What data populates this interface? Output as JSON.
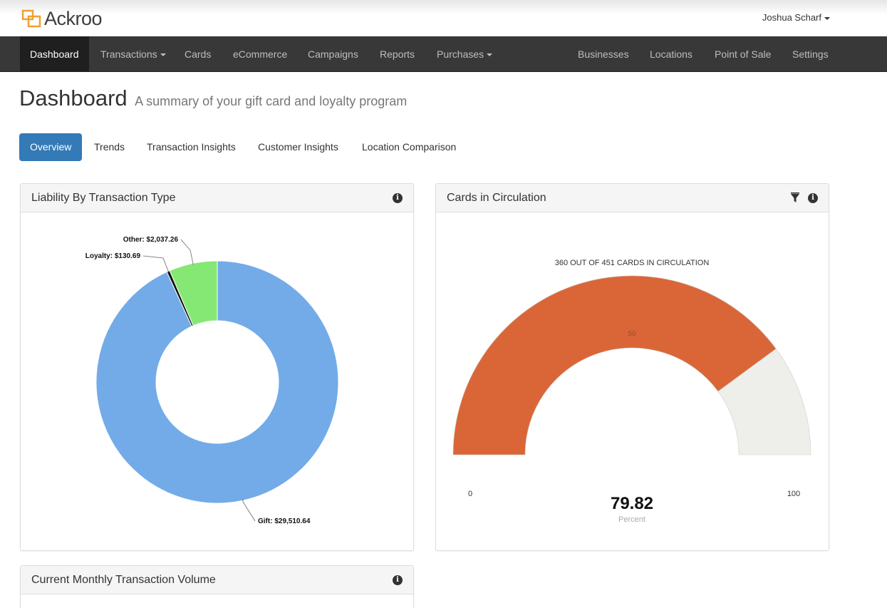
{
  "brand": {
    "name": "Ackroo"
  },
  "user": {
    "name": "Joshua Scharf"
  },
  "nav": {
    "left": [
      {
        "label": "Dashboard",
        "active": true,
        "caret": false
      },
      {
        "label": "Transactions",
        "caret": true
      },
      {
        "label": "Cards",
        "caret": false
      },
      {
        "label": "eCommerce",
        "caret": false
      },
      {
        "label": "Campaigns",
        "caret": false
      },
      {
        "label": "Reports",
        "caret": false
      },
      {
        "label": "Purchases",
        "caret": true
      }
    ],
    "right": [
      {
        "label": "Businesses"
      },
      {
        "label": "Locations"
      },
      {
        "label": "Point of Sale"
      },
      {
        "label": "Settings"
      }
    ]
  },
  "page": {
    "title": "Dashboard",
    "subtitle": "A summary of your gift card and loyalty program"
  },
  "tabs": [
    {
      "label": "Overview",
      "active": true
    },
    {
      "label": "Trends"
    },
    {
      "label": "Transaction Insights"
    },
    {
      "label": "Customer Insights"
    },
    {
      "label": "Location Comparison"
    }
  ],
  "panels": {
    "liability": {
      "title": "Liability By Transaction Type"
    },
    "circulation": {
      "title": "Cards in Circulation"
    },
    "monthly": {
      "title": "Current Monthly Transaction Volume"
    }
  },
  "chart_data": [
    {
      "type": "pie",
      "title": "Liability By Transaction Type",
      "style": "donut",
      "slices": [
        {
          "label": "Gift",
          "value": 29510.64,
          "display": "Gift: $29,510.64",
          "color": "#72abe8"
        },
        {
          "label": "Loyalty",
          "value": 130.69,
          "display": "Loyalty: $130.69",
          "color": "#111111"
        },
        {
          "label": "Other",
          "value": 2037.26,
          "display": "Other: $2,037.26",
          "color": "#86e874"
        }
      ]
    },
    {
      "type": "gauge",
      "title": "Cards in Circulation",
      "caption": "360 OUT OF 451 CARDS IN CIRCULATION",
      "value": 79.82,
      "value_label": "79.82",
      "unit_label": "Percent",
      "min": 0,
      "max": 100,
      "min_label": "0",
      "max_label": "100",
      "tick_label": "50",
      "fill_color": "#da6637",
      "track_color": "#eeeeea"
    }
  ]
}
